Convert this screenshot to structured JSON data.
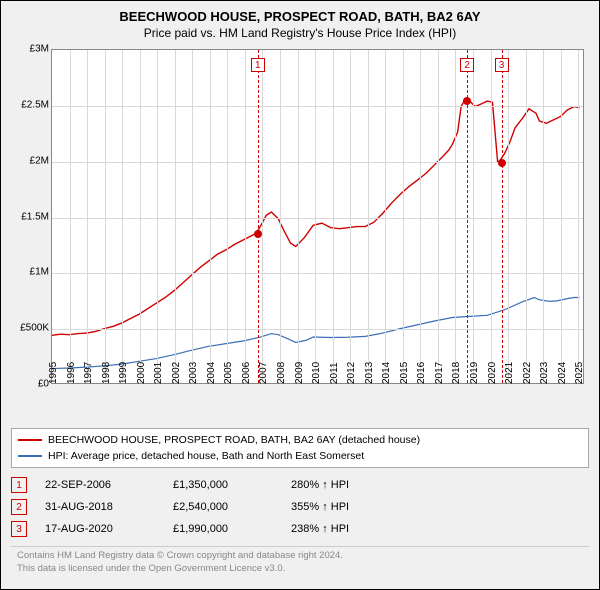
{
  "title": "BEECHWOOD HOUSE, PROSPECT ROAD, BATH, BA2 6AY",
  "subtitle": "Price paid vs. HM Land Registry's House Price Index (HPI)",
  "chart": {
    "type": "line",
    "background_color": "#ffffff",
    "panel_background": "#f0f0f0",
    "grid_color": "#d8d8d8",
    "axis_color": "#888888",
    "title_fontsize": 13,
    "subtitle_fontsize": 12,
    "tick_fontsize": 10,
    "x": {
      "min": 1995,
      "max": 2025.5,
      "ticks": [
        1995,
        1996,
        1997,
        1998,
        1999,
        2000,
        2001,
        2002,
        2003,
        2004,
        2005,
        2006,
        2007,
        2008,
        2009,
        2010,
        2011,
        2012,
        2013,
        2014,
        2015,
        2016,
        2017,
        2018,
        2019,
        2020,
        2021,
        2022,
        2023,
        2024,
        2025
      ],
      "rotation": -90
    },
    "y": {
      "min": 0,
      "max": 3000000,
      "ticks": [
        0,
        500000,
        1000000,
        1500000,
        2000000,
        2500000,
        3000000
      ],
      "tick_labels": [
        "£0",
        "£500K",
        "£1M",
        "£1.5M",
        "£2M",
        "£2.5M",
        "£3M"
      ]
    },
    "series": [
      {
        "name": "BEECHWOOD HOUSE, PROSPECT ROAD, BATH, BA2 6AY (detached house)",
        "color": "#d00000",
        "line_width": 1.4,
        "points": [
          [
            1995.0,
            430000
          ],
          [
            1995.5,
            440000
          ],
          [
            1996.0,
            435000
          ],
          [
            1996.5,
            445000
          ],
          [
            1997.0,
            450000
          ],
          [
            1997.5,
            465000
          ],
          [
            1998.0,
            490000
          ],
          [
            1998.5,
            510000
          ],
          [
            1999.0,
            540000
          ],
          [
            1999.5,
            580000
          ],
          [
            2000.0,
            620000
          ],
          [
            2000.5,
            670000
          ],
          [
            2001.0,
            720000
          ],
          [
            2001.5,
            770000
          ],
          [
            2002.0,
            830000
          ],
          [
            2002.5,
            900000
          ],
          [
            2003.0,
            970000
          ],
          [
            2003.5,
            1040000
          ],
          [
            2004.0,
            1100000
          ],
          [
            2004.5,
            1160000
          ],
          [
            2005.0,
            1200000
          ],
          [
            2005.5,
            1250000
          ],
          [
            2006.0,
            1290000
          ],
          [
            2006.5,
            1330000
          ],
          [
            2006.73,
            1350000
          ],
          [
            2007.0,
            1420000
          ],
          [
            2007.3,
            1510000
          ],
          [
            2007.6,
            1540000
          ],
          [
            2008.0,
            1480000
          ],
          [
            2008.3,
            1380000
          ],
          [
            2008.7,
            1260000
          ],
          [
            2009.0,
            1230000
          ],
          [
            2009.5,
            1310000
          ],
          [
            2010.0,
            1420000
          ],
          [
            2010.5,
            1440000
          ],
          [
            2011.0,
            1400000
          ],
          [
            2011.5,
            1390000
          ],
          [
            2012.0,
            1400000
          ],
          [
            2012.5,
            1410000
          ],
          [
            2013.0,
            1410000
          ],
          [
            2013.5,
            1450000
          ],
          [
            2014.0,
            1530000
          ],
          [
            2014.5,
            1620000
          ],
          [
            2015.0,
            1700000
          ],
          [
            2015.5,
            1770000
          ],
          [
            2016.0,
            1830000
          ],
          [
            2016.5,
            1890000
          ],
          [
            2017.0,
            1970000
          ],
          [
            2017.5,
            2050000
          ],
          [
            2017.8,
            2100000
          ],
          [
            2018.0,
            2150000
          ],
          [
            2018.3,
            2260000
          ],
          [
            2018.5,
            2490000
          ],
          [
            2018.67,
            2540000
          ],
          [
            2018.8,
            2550000
          ],
          [
            2019.0,
            2540000
          ],
          [
            2019.3,
            2490000
          ],
          [
            2019.6,
            2510000
          ],
          [
            2020.0,
            2540000
          ],
          [
            2020.3,
            2530000
          ],
          [
            2020.6,
            1990000
          ],
          [
            2020.63,
            1990000
          ],
          [
            2020.8,
            2020000
          ],
          [
            2021.0,
            2070000
          ],
          [
            2021.3,
            2170000
          ],
          [
            2021.6,
            2300000
          ],
          [
            2022.0,
            2380000
          ],
          [
            2022.4,
            2470000
          ],
          [
            2022.8,
            2430000
          ],
          [
            2023.0,
            2360000
          ],
          [
            2023.4,
            2340000
          ],
          [
            2023.8,
            2370000
          ],
          [
            2024.2,
            2400000
          ],
          [
            2024.6,
            2460000
          ],
          [
            2025.0,
            2490000
          ],
          [
            2025.3,
            2480000
          ]
        ]
      },
      {
        "name": "HPI: Average price, detached house, Bath and North East Somerset",
        "color": "#3a6fb7",
        "line_width": 1.2,
        "points": [
          [
            1995.0,
            130000
          ],
          [
            1996.0,
            135000
          ],
          [
            1997.0,
            143000
          ],
          [
            1998.0,
            155000
          ],
          [
            1999.0,
            170000
          ],
          [
            2000.0,
            195000
          ],
          [
            2001.0,
            220000
          ],
          [
            2002.0,
            255000
          ],
          [
            2003.0,
            295000
          ],
          [
            2004.0,
            330000
          ],
          [
            2005.0,
            355000
          ],
          [
            2006.0,
            380000
          ],
          [
            2007.0,
            415000
          ],
          [
            2007.6,
            445000
          ],
          [
            2008.0,
            435000
          ],
          [
            2008.6,
            395000
          ],
          [
            2009.0,
            365000
          ],
          [
            2009.6,
            385000
          ],
          [
            2010.0,
            415000
          ],
          [
            2011.0,
            410000
          ],
          [
            2012.0,
            412000
          ],
          [
            2013.0,
            420000
          ],
          [
            2014.0,
            450000
          ],
          [
            2015.0,
            490000
          ],
          [
            2016.0,
            525000
          ],
          [
            2017.0,
            560000
          ],
          [
            2018.0,
            590000
          ],
          [
            2019.0,
            600000
          ],
          [
            2020.0,
            610000
          ],
          [
            2021.0,
            660000
          ],
          [
            2022.0,
            730000
          ],
          [
            2022.7,
            770000
          ],
          [
            2023.0,
            750000
          ],
          [
            2023.6,
            735000
          ],
          [
            2024.0,
            740000
          ],
          [
            2024.6,
            760000
          ],
          [
            2025.0,
            770000
          ],
          [
            2025.3,
            770000
          ]
        ]
      }
    ],
    "reference_lines": [
      {
        "x": 2006.73,
        "label": "1"
      },
      {
        "x": 2018.67,
        "label": "2"
      },
      {
        "x": 2020.63,
        "label": "3"
      }
    ],
    "sale_markers": [
      {
        "x": 2006.73,
        "y": 1350000,
        "color": "#d00000"
      },
      {
        "x": 2018.67,
        "y": 2540000,
        "color": "#d00000"
      },
      {
        "x": 2020.63,
        "y": 1990000,
        "color": "#d00000"
      }
    ],
    "marker_radius": 4
  },
  "legend": {
    "items": [
      {
        "color": "#d00000",
        "label": "BEECHWOOD HOUSE, PROSPECT ROAD, BATH, BA2 6AY (detached house)"
      },
      {
        "color": "#3a6fb7",
        "label": "HPI: Average price, detached house, Bath and North East Somerset"
      }
    ]
  },
  "sales": [
    {
      "n": "1",
      "date": "22-SEP-2006",
      "price": "£1,350,000",
      "pct": "280% ↑ HPI"
    },
    {
      "n": "2",
      "date": "31-AUG-2018",
      "price": "£2,540,000",
      "pct": "355% ↑ HPI"
    },
    {
      "n": "3",
      "date": "17-AUG-2020",
      "price": "£1,990,000",
      "pct": "238% ↑ HPI"
    }
  ],
  "attribution_line1": "Contains HM Land Registry data © Crown copyright and database right 2024.",
  "attribution_line2": "This data is licensed under the Open Government Licence v3.0."
}
